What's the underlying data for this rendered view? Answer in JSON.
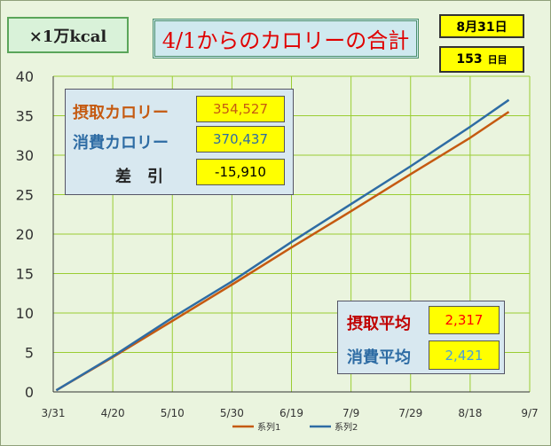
{
  "unit_label": "×1万kcal",
  "title": "4/1からのカロリーの合計",
  "date": "8月31日",
  "days": {
    "value": "153",
    "unit": "日目"
  },
  "summary": {
    "intake_label": "摂取カロリー",
    "intake_value": "354,527",
    "burn_label": "消費カロリー",
    "burn_value": "370,437",
    "diff_label": "差　引",
    "diff_value": "-15,910"
  },
  "averages": {
    "intake_label": "摂取平均",
    "intake_value": "2,317",
    "burn_label": "消費平均",
    "burn_value": "2,421"
  },
  "colors": {
    "series1": "#c55a11",
    "series2": "#2e6ca4",
    "grid": "#9acd32",
    "intake_value_text": "#ff0000",
    "burn_value_text": "#4a9fd8",
    "intake_label_text": "#c55a11",
    "burn_label_text": "#2e6ca4"
  },
  "chart_data": {
    "type": "line",
    "categories": [
      "3/31",
      "4/20",
      "5/10",
      "5/30",
      "6/19",
      "7/9",
      "7/29",
      "8/18",
      "9/7"
    ],
    "x_range": [
      0,
      160
    ],
    "ylim": [
      0,
      40
    ],
    "yticks": [
      0,
      5,
      10,
      15,
      20,
      25,
      30,
      35,
      40
    ],
    "grid": true,
    "legend_position": "bottom",
    "series": [
      {
        "name": "系列1",
        "x": [
          1,
          20,
          40,
          60,
          80,
          100,
          120,
          140,
          153
        ],
        "values": [
          0.2,
          4.4,
          9.0,
          13.6,
          18.3,
          22.9,
          27.6,
          32.2,
          35.5
        ]
      },
      {
        "name": "系列2",
        "x": [
          1,
          20,
          40,
          60,
          80,
          100,
          120,
          140,
          153
        ],
        "values": [
          0.2,
          4.5,
          9.4,
          14.0,
          19.0,
          23.8,
          28.6,
          33.6,
          37.0
        ]
      }
    ]
  }
}
